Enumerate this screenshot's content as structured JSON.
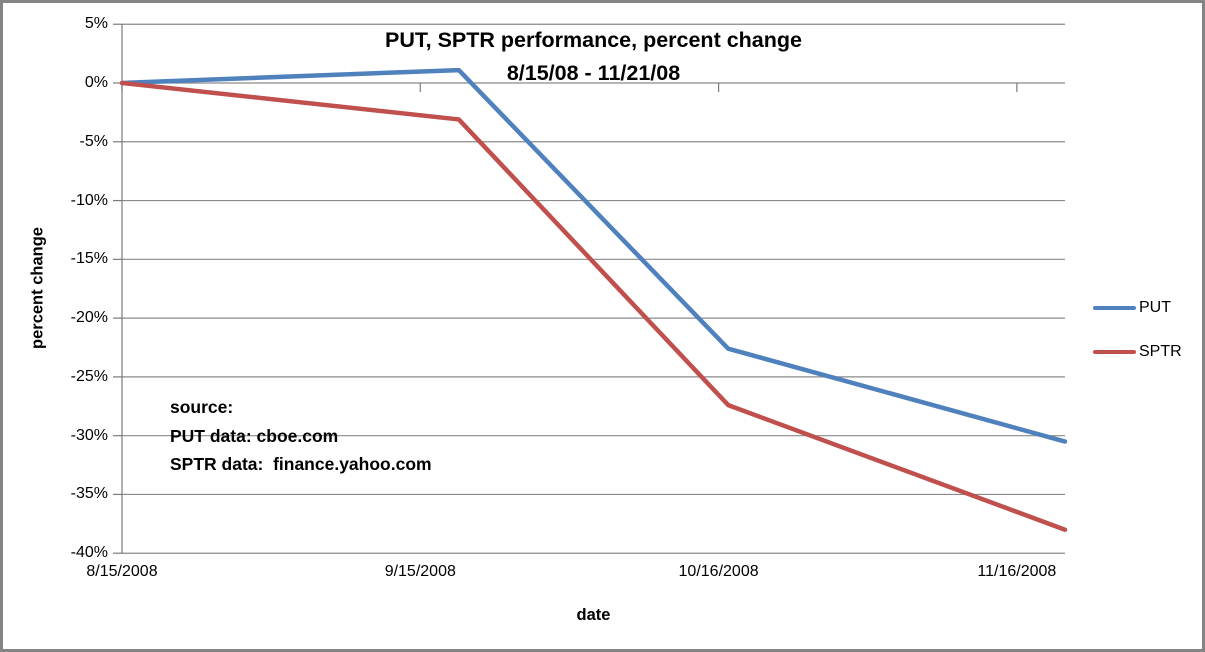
{
  "colors": {
    "put_line": "#4F81BD",
    "sptr_line": "#C0504D",
    "gridline": "#8A8A8A",
    "axis": "#7A7A7A",
    "frame_border": "#848484",
    "text": "#000000"
  },
  "annotations": {
    "source_lines": [
      "source:",
      "PUT data: cboe.com",
      "SPTR data:  finance.yahoo.com"
    ]
  },
  "chart_data": {
    "type": "line",
    "title": "PUT, SPTR performance, percent change",
    "subtitle": "8/15/08 - 11/21/08",
    "xlabel": "date",
    "ylabel": "percent change",
    "ylim": [
      -40,
      5
    ],
    "y_tick_step": 5,
    "y_tick_labels": [
      "5%",
      "0%",
      "-5%",
      "-10%",
      "-15%",
      "-20%",
      "-25%",
      "-30%",
      "-35%",
      "-40%"
    ],
    "x_axis": {
      "start_date": "8/15/2008",
      "end_date": "11/21/2008",
      "span_days": 98,
      "tick_labels": [
        "8/15/2008",
        "9/15/2008",
        "10/16/2008",
        "11/16/2008"
      ],
      "tick_day_offsets": [
        0,
        31,
        62,
        93
      ]
    },
    "grid": true,
    "legend_position": "right-middle",
    "series": [
      {
        "name": "PUT",
        "color": "#4F81BD",
        "points": [
          {
            "date": "8/15/2008",
            "day": 0,
            "pct": 0.0
          },
          {
            "date": "9/19/2008",
            "day": 35,
            "pct": 1.1
          },
          {
            "date": "10/17/2008",
            "day": 63,
            "pct": -22.6
          },
          {
            "date": "11/21/2008",
            "day": 98,
            "pct": -30.5
          }
        ]
      },
      {
        "name": "SPTR",
        "color": "#C0504D",
        "points": [
          {
            "date": "8/15/2008",
            "day": 0,
            "pct": 0.0
          },
          {
            "date": "9/19/2008",
            "day": 35,
            "pct": -3.1
          },
          {
            "date": "10/17/2008",
            "day": 63,
            "pct": -27.4
          },
          {
            "date": "11/21/2008",
            "day": 98,
            "pct": -38.0
          }
        ]
      }
    ]
  }
}
